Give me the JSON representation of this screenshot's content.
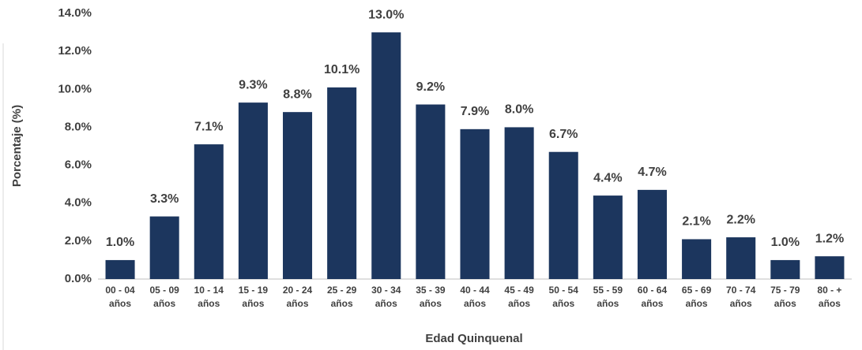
{
  "chart_data": {
    "type": "bar",
    "x_label": "Edad Quinquenal",
    "y_label": "Porcentaje (%)",
    "categories": [
      "00 - 04 años",
      "05 - 09 años",
      "10 - 14 años",
      "15 - 19 años",
      "20 - 24 años",
      "25 - 29 años",
      "30 - 34 años",
      "35 - 39 años",
      "40 - 44 años",
      "45 - 49 años",
      "50 - 54 años",
      "55 - 59 años",
      "60 - 64 años",
      "65 - 69 años",
      "70 - 74 años",
      "75 - 79 años",
      "80 - + años"
    ],
    "values": [
      1.0,
      3.3,
      7.1,
      9.3,
      8.8,
      10.1,
      13.0,
      9.2,
      7.9,
      8.0,
      6.7,
      4.4,
      4.7,
      2.1,
      2.2,
      1.0,
      1.2
    ],
    "value_labels": [
      "1.0%",
      "3.3%",
      "7.1%",
      "9.3%",
      "8.8%",
      "10.1%",
      "13.0%",
      "9.2%",
      "7.9%",
      "8.0%",
      "6.7%",
      "4.4%",
      "4.7%",
      "2.1%",
      "2.2%",
      "1.0%",
      "1.2%"
    ],
    "color": "#1c365e",
    "ylim": [
      0,
      14
    ],
    "yticks": [
      {
        "value": 0,
        "label": "0.0%"
      },
      {
        "value": 2,
        "label": "2.0%"
      },
      {
        "value": 4,
        "label": "4.0%"
      },
      {
        "value": 6,
        "label": "6.0%"
      },
      {
        "value": 8,
        "label": "8.0%"
      },
      {
        "value": 10,
        "label": "10.0%"
      },
      {
        "value": 12,
        "label": "12.0%"
      },
      {
        "value": 14,
        "label": "14.0%"
      }
    ],
    "grid": false
  }
}
